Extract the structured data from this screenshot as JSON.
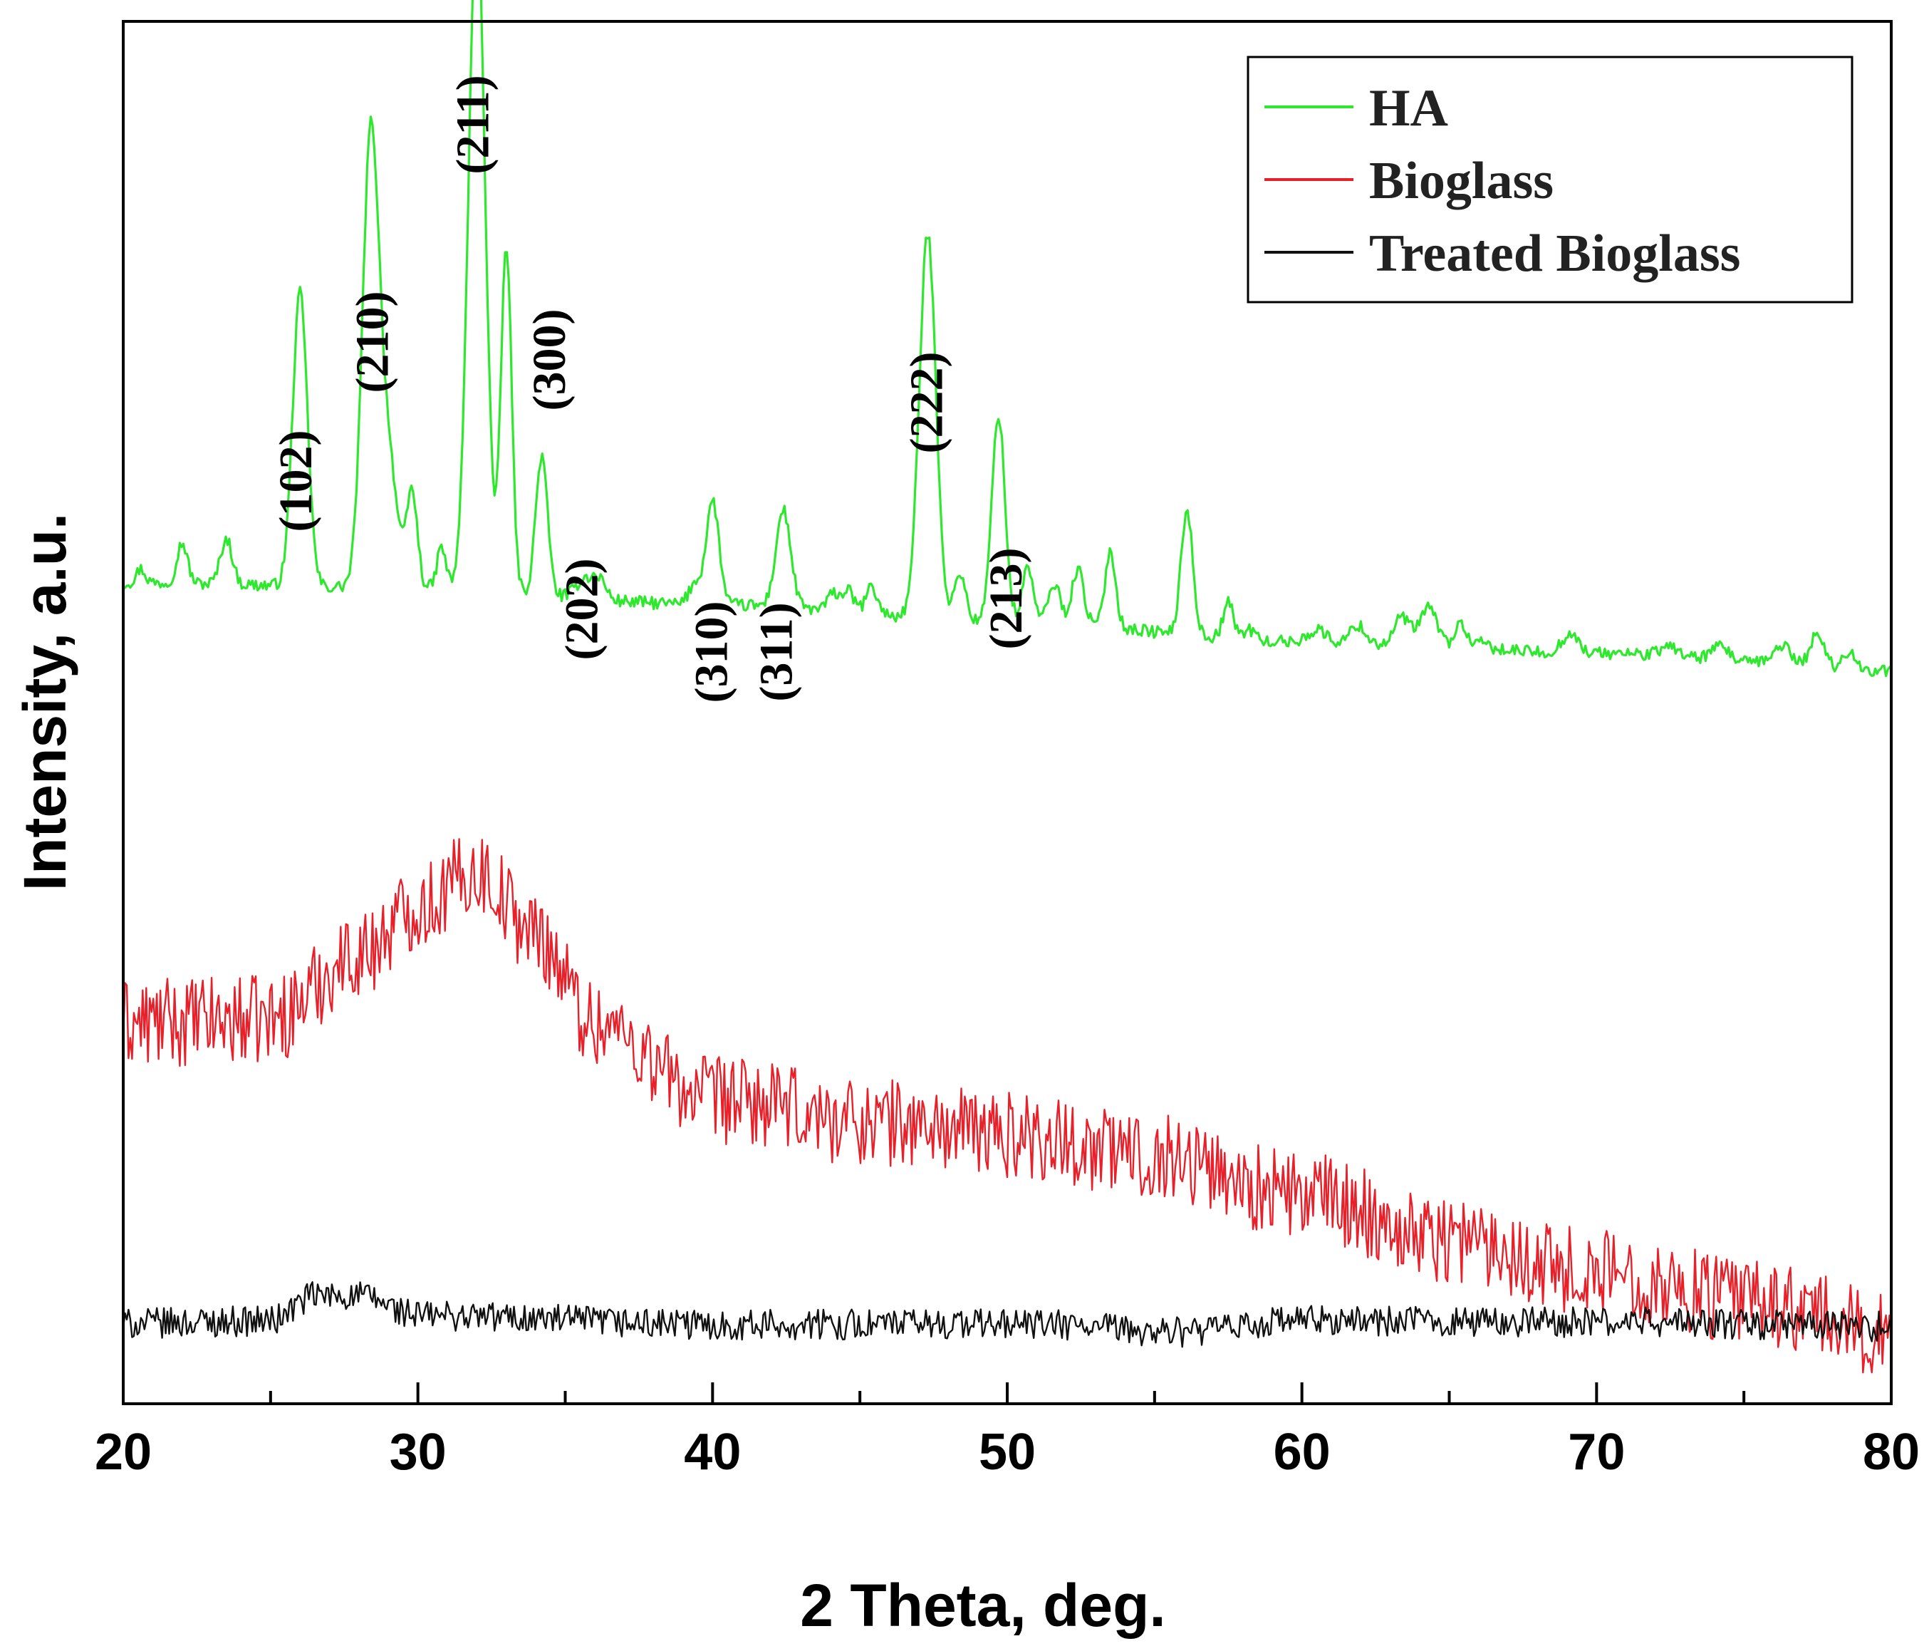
{
  "chart_data": {
    "type": "line",
    "title": "",
    "xlabel": "2 Theta, deg.",
    "ylabel": "Intensity, a.u.",
    "xlim": [
      20,
      80
    ],
    "ylim": [
      0,
      100
    ],
    "x_ticks": [
      "20",
      "30",
      "40",
      "50",
      "60",
      "70",
      "80"
    ],
    "y_ticks_shown": false,
    "legend": {
      "position": "top-right",
      "entries": [
        "HA",
        "Bioglass",
        "Treated Bioglass"
      ]
    },
    "peak_labels": [
      {
        "text": "(102)",
        "x": 25.9
      },
      {
        "text": "(210)",
        "x": 28.5
      },
      {
        "text": "(211)",
        "x": 31.9
      },
      {
        "text": "(300)",
        "x": 34.5
      },
      {
        "text": "(202)",
        "x": 35.6
      },
      {
        "text": "(310)",
        "x": 40.0
      },
      {
        "text": "(311)",
        "x": 42.2
      },
      {
        "text": "(222)",
        "x": 47.3
      },
      {
        "text": "(213)",
        "x": 50.0
      }
    ],
    "series": [
      {
        "name": "HA",
        "color": "#2ee82e",
        "baseline": [
          [
            20,
            59.4
          ],
          [
            30,
            59.0
          ],
          [
            40,
            57.8
          ],
          [
            50,
            56.6
          ],
          [
            60,
            55.1
          ],
          [
            70,
            54.3
          ],
          [
            80,
            53.0
          ]
        ],
        "peaks": [
          [
            20.6,
            1.0,
            0.15
          ],
          [
            22.0,
            2.9,
            0.18
          ],
          [
            23.5,
            3.3,
            0.2
          ],
          [
            26.0,
            21.2,
            0.25
          ],
          [
            28.4,
            32.5,
            0.28
          ],
          [
            29.0,
            9.0,
            0.3
          ],
          [
            29.8,
            7.0,
            0.18
          ],
          [
            30.8,
            3.0,
            0.15
          ],
          [
            32.0,
            49.0,
            0.28
          ],
          [
            33.0,
            25.0,
            0.18
          ],
          [
            34.2,
            10.0,
            0.2
          ],
          [
            35.7,
            1.5,
            0.3
          ],
          [
            36.2,
            1.2,
            0.2
          ],
          [
            39.4,
            1.5,
            0.2
          ],
          [
            40.0,
            7.5,
            0.22
          ],
          [
            42.4,
            7.0,
            0.25
          ],
          [
            44.1,
            1.2,
            0.2
          ],
          [
            44.6,
            1.5,
            0.2
          ],
          [
            45.4,
            1.9,
            0.2
          ],
          [
            47.3,
            27.8,
            0.28
          ],
          [
            48.4,
            3.5,
            0.18
          ],
          [
            49.7,
            15.0,
            0.22
          ],
          [
            50.7,
            4.0,
            0.18
          ],
          [
            51.6,
            2.8,
            0.2
          ],
          [
            52.4,
            4.0,
            0.2
          ],
          [
            53.5,
            5.5,
            0.18
          ],
          [
            56.1,
            9.0,
            0.2
          ],
          [
            57.5,
            2.6,
            0.18
          ],
          [
            58.2,
            0.8,
            0.2
          ],
          [
            60.5,
            0.9,
            0.3
          ],
          [
            61.9,
            1.3,
            0.25
          ],
          [
            63.4,
            2.0,
            0.25
          ],
          [
            64.3,
            2.8,
            0.3
          ],
          [
            65.4,
            1.8,
            0.2
          ],
          [
            66.2,
            0.5,
            0.2
          ],
          [
            69.1,
            1.5,
            0.25
          ],
          [
            72.5,
            0.7,
            0.3
          ],
          [
            74.2,
            0.9,
            0.3
          ],
          [
            76.3,
            1.5,
            0.3
          ],
          [
            77.5,
            2.5,
            0.25
          ],
          [
            78.6,
            1.5,
            0.2
          ]
        ],
        "noise_amplitude": 0.45
      },
      {
        "name": "Bioglass",
        "color": "#e8202a",
        "baseline": [
          [
            20,
            27.5
          ],
          [
            25,
            27.8
          ],
          [
            28,
            32.5
          ],
          [
            30,
            36.0
          ],
          [
            32,
            38.5
          ],
          [
            34,
            34.0
          ],
          [
            36,
            27.5
          ],
          [
            40,
            22.0
          ],
          [
            45,
            20.5
          ],
          [
            50,
            19.5
          ],
          [
            55,
            18.0
          ],
          [
            60,
            15.0
          ],
          [
            65,
            12.0
          ],
          [
            70,
            9.5
          ],
          [
            75,
            7.5
          ],
          [
            80,
            5.0
          ]
        ],
        "noise_amplitude": 3.2
      },
      {
        "name": "Treated Bioglass",
        "color": "#111111",
        "baseline": [
          [
            20,
            5.8
          ],
          [
            25,
            6.0
          ],
          [
            26.5,
            7.8
          ],
          [
            28,
            7.8
          ],
          [
            30,
            6.4
          ],
          [
            40,
            5.7
          ],
          [
            50,
            5.8
          ],
          [
            56,
            5.2
          ],
          [
            60,
            6.0
          ],
          [
            70,
            5.9
          ],
          [
            80,
            5.6
          ]
        ],
        "noise_amplitude": 1.1
      }
    ]
  }
}
